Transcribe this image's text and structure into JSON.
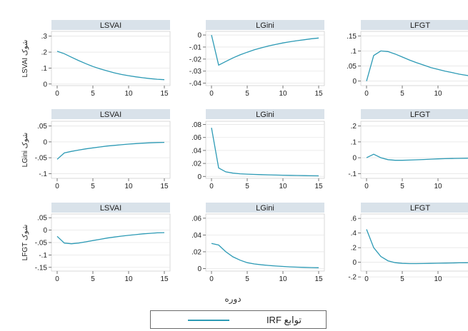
{
  "figure": {
    "x_axis_label": "دوره",
    "legend_label": "توابع IRF",
    "line_color": "#2c9ab5",
    "panel_title_bg": "#d9e2ea",
    "plot_bg": "#ffffff"
  },
  "chart_data": [
    {
      "type": "line",
      "row": 1,
      "col": 1,
      "title": "LSVAI",
      "ylabel": "LSVAI شوک",
      "xlim": [
        0,
        15
      ],
      "ylim": [
        -0.01,
        0.33
      ],
      "x_ticks": [
        0,
        5,
        10,
        15
      ],
      "y_ticks": [
        0,
        0.1,
        0.2,
        0.3
      ],
      "y_tick_labels": [
        "0",
        ".1",
        ".2",
        ".3"
      ],
      "x": [
        0,
        1,
        2,
        3,
        4,
        5,
        6,
        7,
        8,
        9,
        10,
        11,
        12,
        13,
        14,
        15
      ],
      "y": [
        0.205,
        0.19,
        0.168,
        0.147,
        0.128,
        0.11,
        0.095,
        0.082,
        0.07,
        0.06,
        0.052,
        0.045,
        0.039,
        0.034,
        0.03,
        0.027
      ]
    },
    {
      "type": "line",
      "row": 1,
      "col": 2,
      "title": "LGini",
      "ylabel": "",
      "xlim": [
        0,
        15
      ],
      "ylim": [
        -0.042,
        0.003
      ],
      "x_ticks": [
        0,
        5,
        10,
        15
      ],
      "y_ticks": [
        0,
        -0.01,
        -0.02,
        -0.03,
        -0.04
      ],
      "y_tick_labels": [
        "0",
        "-.01",
        "-.02",
        "-.03",
        "-.04"
      ],
      "x": [
        0,
        1,
        2,
        3,
        4,
        5,
        6,
        7,
        8,
        9,
        10,
        11,
        12,
        13,
        14,
        15
      ],
      "y": [
        0,
        -0.025,
        -0.022,
        -0.019,
        -0.0165,
        -0.0143,
        -0.0123,
        -0.0106,
        -0.0091,
        -0.0078,
        -0.0066,
        -0.0056,
        -0.0047,
        -0.0039,
        -0.0031,
        -0.0025
      ]
    },
    {
      "type": "line",
      "row": 1,
      "col": 3,
      "title": "LFGT",
      "ylabel": "",
      "xlim": [
        0,
        15
      ],
      "ylim": [
        -0.015,
        0.165
      ],
      "x_ticks": [
        0,
        5,
        10,
        15
      ],
      "y_ticks": [
        0,
        0.05,
        0.1,
        0.15
      ],
      "y_tick_labels": [
        "0",
        ".05",
        ".1",
        ".15"
      ],
      "x": [
        0,
        1,
        2,
        3,
        4,
        5,
        6,
        7,
        8,
        9,
        10,
        11,
        12,
        13,
        14,
        15
      ],
      "y": [
        0,
        0.085,
        0.1,
        0.098,
        0.09,
        0.08,
        0.07,
        0.061,
        0.053,
        0.045,
        0.039,
        0.033,
        0.028,
        0.023,
        0.019,
        0.015
      ]
    },
    {
      "type": "line",
      "row": 2,
      "col": 1,
      "title": "LSVAI",
      "ylabel": "LGini شوک",
      "xlim": [
        0,
        15
      ],
      "ylim": [
        -0.115,
        0.065
      ],
      "x_ticks": [
        0,
        5,
        10,
        15
      ],
      "y_ticks": [
        0.05,
        0,
        -0.05,
        -0.1
      ],
      "y_tick_labels": [
        ".05",
        "0",
        "-.05",
        "-.1"
      ],
      "x": [
        0,
        1,
        2,
        3,
        4,
        5,
        6,
        7,
        8,
        9,
        10,
        11,
        12,
        13,
        14,
        15
      ],
      "y": [
        -0.055,
        -0.035,
        -0.03,
        -0.026,
        -0.022,
        -0.019,
        -0.016,
        -0.013,
        -0.011,
        -0.009,
        -0.007,
        -0.0055,
        -0.004,
        -0.003,
        -0.002,
        -0.0015
      ]
    },
    {
      "type": "line",
      "row": 2,
      "col": 2,
      "title": "LGini",
      "ylabel": "",
      "xlim": [
        0,
        15
      ],
      "ylim": [
        -0.003,
        0.085
      ],
      "x_ticks": [
        0,
        5,
        10,
        15
      ],
      "y_ticks": [
        0,
        0.02,
        0.04,
        0.06,
        0.08
      ],
      "y_tick_labels": [
        "0",
        ".02",
        ".04",
        ".06",
        ".08"
      ],
      "x": [
        0,
        1,
        2,
        3,
        4,
        5,
        6,
        7,
        8,
        9,
        10,
        11,
        12,
        13,
        14,
        15
      ],
      "y": [
        0.075,
        0.013,
        0.007,
        0.005,
        0.004,
        0.0035,
        0.003,
        0.0027,
        0.0024,
        0.0021,
        0.0018,
        0.0016,
        0.0014,
        0.0012,
        0.001,
        0.0008
      ]
    },
    {
      "type": "line",
      "row": 2,
      "col": 3,
      "title": "LFGT",
      "ylabel": "",
      "xlim": [
        0,
        15
      ],
      "ylim": [
        -0.13,
        0.23
      ],
      "x_ticks": [
        0,
        5,
        10,
        15
      ],
      "y_ticks": [
        0.2,
        0.1,
        0,
        -0.1
      ],
      "y_tick_labels": [
        ".2",
        ".1",
        "0",
        "-.1"
      ],
      "x": [
        0,
        1,
        2,
        3,
        4,
        5,
        6,
        7,
        8,
        9,
        10,
        11,
        12,
        13,
        14,
        15
      ],
      "y": [
        0,
        0.022,
        0,
        -0.012,
        -0.016,
        -0.016,
        -0.015,
        -0.013,
        -0.011,
        -0.009,
        -0.007,
        -0.006,
        -0.005,
        -0.004,
        -0.003,
        -0.002
      ]
    },
    {
      "type": "line",
      "row": 3,
      "col": 1,
      "title": "LSVAI",
      "ylabel": "LFGT شوک",
      "xlim": [
        0,
        15
      ],
      "ylim": [
        -0.165,
        0.065
      ],
      "x_ticks": [
        0,
        5,
        10,
        15
      ],
      "y_ticks": [
        0.05,
        0,
        -0.05,
        -0.1,
        -0.15
      ],
      "y_tick_labels": [
        ".05",
        "0",
        "-.05",
        "-.1",
        "-.15"
      ],
      "x": [
        0,
        1,
        2,
        3,
        4,
        5,
        6,
        7,
        8,
        9,
        10,
        11,
        12,
        13,
        14,
        15
      ],
      "y": [
        -0.025,
        -0.052,
        -0.055,
        -0.052,
        -0.047,
        -0.042,
        -0.037,
        -0.032,
        -0.028,
        -0.024,
        -0.021,
        -0.018,
        -0.015,
        -0.013,
        -0.011,
        -0.01
      ]
    },
    {
      "type": "line",
      "row": 3,
      "col": 2,
      "title": "LGini",
      "ylabel": "",
      "xlim": [
        0,
        15
      ],
      "ylim": [
        -0.003,
        0.065
      ],
      "x_ticks": [
        0,
        5,
        10,
        15
      ],
      "y_ticks": [
        0,
        0.02,
        0.04,
        0.06
      ],
      "y_tick_labels": [
        "0",
        ".02",
        ".04",
        ".06"
      ],
      "x": [
        0,
        1,
        2,
        3,
        4,
        5,
        6,
        7,
        8,
        9,
        10,
        11,
        12,
        13,
        14,
        15
      ],
      "y": [
        0.03,
        0.028,
        0.02,
        0.014,
        0.01,
        0.007,
        0.0055,
        0.0045,
        0.0037,
        0.003,
        0.0025,
        0.002,
        0.0017,
        0.0014,
        0.0012,
        0.001
      ]
    },
    {
      "type": "line",
      "row": 3,
      "col": 3,
      "title": "LFGT",
      "ylabel": "",
      "xlim": [
        0,
        15
      ],
      "ylim": [
        -0.12,
        0.66
      ],
      "x_ticks": [
        0,
        5,
        10,
        15
      ],
      "y_ticks": [
        0.6,
        0.4,
        0.2,
        0,
        -0.2
      ],
      "y_tick_labels": [
        ".6",
        ".4",
        ".2",
        "0",
        "-.2"
      ],
      "x": [
        0,
        1,
        2,
        3,
        4,
        5,
        6,
        7,
        8,
        9,
        10,
        11,
        12,
        13,
        14,
        15
      ],
      "y": [
        0.45,
        0.2,
        0.08,
        0.02,
        -0.005,
        -0.015,
        -0.018,
        -0.018,
        -0.017,
        -0.015,
        -0.013,
        -0.011,
        -0.009,
        -0.007,
        -0.006,
        -0.005
      ]
    }
  ]
}
